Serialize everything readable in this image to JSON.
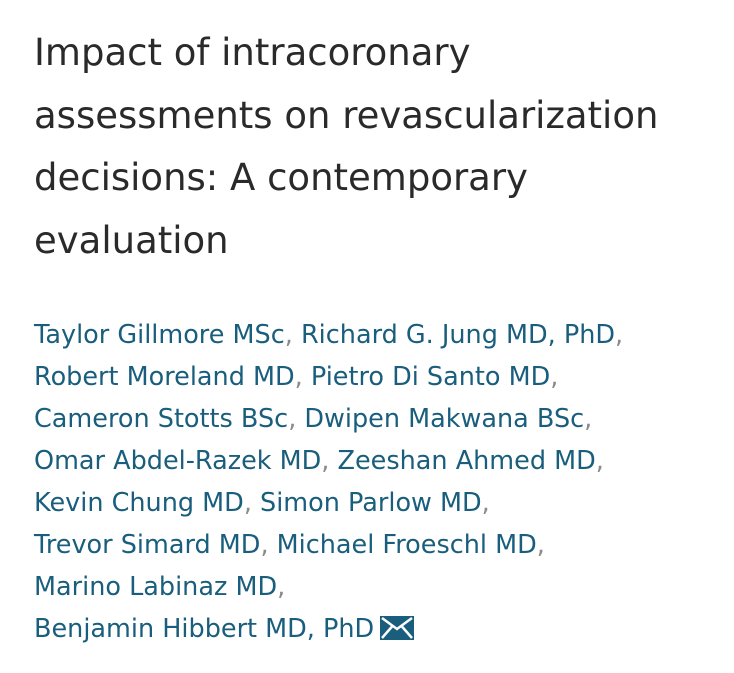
{
  "article": {
    "title": "Impact of intracoronary assessments on revascularization decisions: A contemporary evaluation"
  },
  "authors": [
    {
      "name": "Taylor Gillmore MSc"
    },
    {
      "name": "Richard G. Jung MD, PhD"
    },
    {
      "name": "Robert Moreland MD"
    },
    {
      "name": "Pietro Di Santo MD"
    },
    {
      "name": "Cameron Stotts BSc"
    },
    {
      "name": "Dwipen Makwana BSc"
    },
    {
      "name": "Omar Abdel-Razek MD"
    },
    {
      "name": "Zeeshan Ahmed MD"
    },
    {
      "name": "Kevin Chung MD"
    },
    {
      "name": "Simon Parlow MD"
    },
    {
      "name": "Trevor Simard MD"
    },
    {
      "name": "Michael Froeschl MD"
    },
    {
      "name": "Marino Labinaz MD"
    },
    {
      "name": "Benjamin Hibbert MD, PhD"
    }
  ],
  "separator": ",",
  "colors": {
    "title": "#2a2a2a",
    "author_link": "#1a5e7d",
    "separator": "#8a8a8a"
  },
  "icons": {
    "corresponding_author": "envelope-icon"
  }
}
